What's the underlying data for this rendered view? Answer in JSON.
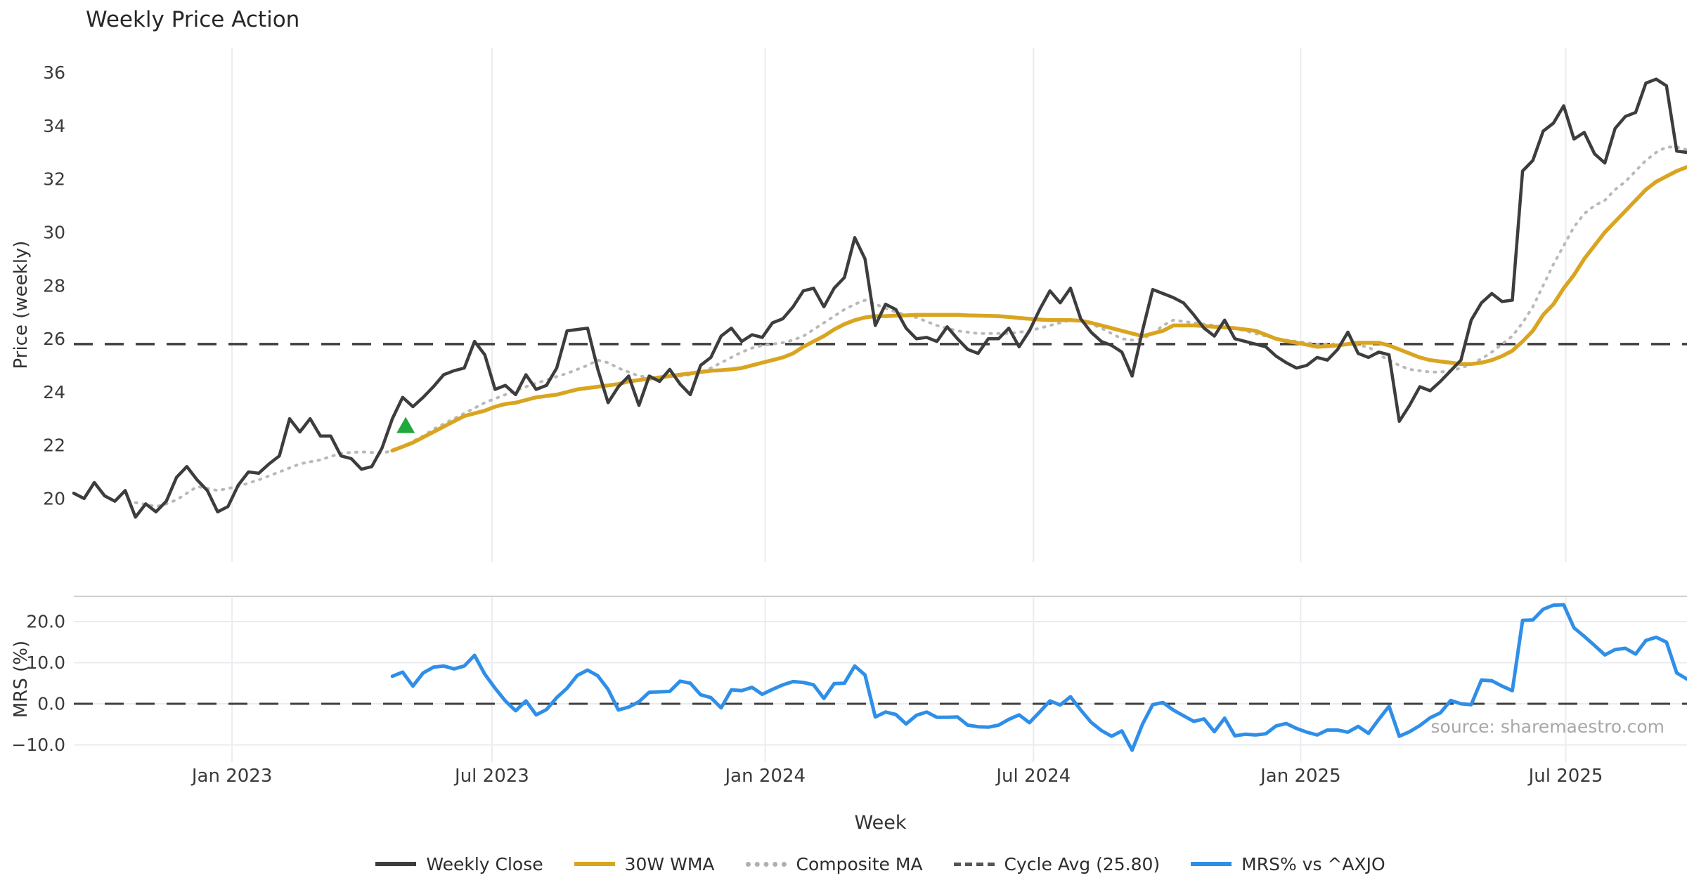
{
  "title": "Weekly Price Action",
  "source_note": "source: sharemaestro.com",
  "colors": {
    "weekly_close": "#3d3d3d",
    "wma_30w": "#d9a521",
    "composite_ma": "#b9b9b9",
    "cycle_avg_line": "#3f3f3f",
    "mrs_line": "#2f8fe8",
    "signal_marker": "#1fa83c",
    "grid": "#ebebf2",
    "panel_border": "#cfcfcf",
    "tick_text": "#3a3a3a",
    "axis_title_text": "#333333",
    "source_text": "#a8a8a8"
  },
  "legend": [
    {
      "label": "Weekly Close",
      "style": "solid",
      "color": "#3d3d3d"
    },
    {
      "label": "30W WMA",
      "style": "solid",
      "color": "#d9a521"
    },
    {
      "label": "Composite MA",
      "style": "dotted",
      "color": "#b0b0b0"
    },
    {
      "label": "Cycle Avg (25.80)",
      "style": "dashed",
      "color": "#555555"
    },
    {
      "label": "MRS% vs ^AXJO",
      "style": "solid",
      "color": "#2f8fe8"
    }
  ],
  "chart_data": [
    {
      "type": "line",
      "panel": "price",
      "title": "Weekly Price Action",
      "ylabel": "Price (weekly)",
      "xlabel": "Week",
      "x_start_date": "2022-09-19",
      "x_freq": "weekly",
      "ylim": [
        17.62,
        36.93
      ],
      "yticks": [
        20,
        22,
        24,
        26,
        28,
        30,
        32,
        34,
        36
      ],
      "xticks": {
        "labels": [
          "Jan 2023",
          "Jul 2023",
          "Jan 2024",
          "Jul 2024",
          "Jan 2025",
          "Jul 2025"
        ],
        "week_positions": [
          15.4,
          40.7,
          67.3,
          93.4,
          119.4,
          145.2
        ]
      },
      "grid": "vertical",
      "cycle_avg": 25.8,
      "signal_marker": {
        "shape": "triangle-up",
        "week": 32.3,
        "price": 22.75
      },
      "series": [
        {
          "name": "Weekly Close",
          "start_week": 0,
          "values": [
            20.2,
            20.0,
            20.6,
            20.1,
            19.9,
            20.3,
            19.3,
            19.8,
            19.5,
            19.9,
            20.8,
            21.2,
            20.7,
            20.3,
            19.5,
            19.7,
            20.5,
            21.0,
            20.95,
            21.3,
            21.6,
            23.0,
            22.5,
            23.0,
            22.35,
            22.35,
            21.6,
            21.5,
            21.1,
            21.2,
            21.9,
            23.0,
            23.8,
            23.45,
            23.8,
            24.2,
            24.65,
            24.8,
            24.9,
            25.9,
            25.4,
            24.1,
            24.25,
            23.9,
            24.65,
            24.1,
            24.25,
            24.9,
            26.3,
            26.35,
            26.4,
            24.85,
            23.6,
            24.2,
            24.6,
            23.5,
            24.6,
            24.4,
            24.85,
            24.3,
            23.9,
            25.0,
            25.3,
            26.1,
            26.4,
            25.9,
            26.15,
            26.05,
            26.6,
            26.75,
            27.2,
            27.8,
            27.9,
            27.2,
            27.9,
            28.3,
            29.8,
            29.0,
            26.5,
            27.3,
            27.1,
            26.4,
            26.0,
            26.05,
            25.9,
            26.45,
            26.0,
            25.6,
            25.45,
            26.0,
            26.0,
            26.4,
            25.7,
            26.3,
            27.1,
            27.8,
            27.35,
            27.9,
            26.75,
            26.25,
            25.9,
            25.75,
            25.5,
            24.6,
            26.3,
            27.85,
            27.7,
            27.55,
            27.35,
            26.9,
            26.4,
            26.1,
            26.7,
            26.0,
            25.9,
            25.8,
            25.7,
            25.35,
            25.1,
            24.9,
            25.0,
            25.3,
            25.2,
            25.6,
            26.25,
            25.45,
            25.3,
            25.5,
            25.4,
            22.9,
            23.5,
            24.2,
            24.05,
            24.4,
            24.8,
            25.2,
            26.7,
            27.35,
            27.7,
            27.4,
            27.45,
            32.3,
            32.7,
            33.8,
            34.1,
            34.75,
            33.5,
            33.75,
            32.95,
            32.6,
            33.9,
            34.35,
            34.5,
            35.6,
            35.75,
            35.5,
            33.05,
            33.0
          ]
        },
        {
          "name": "30W WMA",
          "start_week": 31,
          "values": [
            21.8,
            21.95,
            22.1,
            22.3,
            22.5,
            22.7,
            22.9,
            23.1,
            23.2,
            23.3,
            23.45,
            23.55,
            23.6,
            23.7,
            23.8,
            23.85,
            23.9,
            24.0,
            24.1,
            24.15,
            24.2,
            24.25,
            24.3,
            24.4,
            24.45,
            24.5,
            24.55,
            24.6,
            24.65,
            24.7,
            24.75,
            24.8,
            24.82,
            24.85,
            24.9,
            25.0,
            25.1,
            25.2,
            25.3,
            25.45,
            25.7,
            25.9,
            26.1,
            26.35,
            26.55,
            26.7,
            26.8,
            26.85,
            26.85,
            26.87,
            26.88,
            26.9,
            26.9,
            26.9,
            26.9,
            26.9,
            26.88,
            26.87,
            26.86,
            26.85,
            26.82,
            26.78,
            26.75,
            26.72,
            26.7,
            26.7,
            26.7,
            26.68,
            26.6,
            26.5,
            26.4,
            26.3,
            26.2,
            26.1,
            26.2,
            26.3,
            26.5,
            26.5,
            26.5,
            26.48,
            26.45,
            26.43,
            26.4,
            26.35,
            26.3,
            26.15,
            26.0,
            25.92,
            25.85,
            25.78,
            25.7,
            25.72,
            25.75,
            25.8,
            25.85,
            25.85,
            25.85,
            25.75,
            25.6,
            25.45,
            25.3,
            25.2,
            25.15,
            25.1,
            25.05,
            25.05,
            25.1,
            25.2,
            25.35,
            25.55,
            25.9,
            26.3,
            26.9,
            27.3,
            27.9,
            28.4,
            29.0,
            29.5,
            30.0,
            30.4,
            30.8,
            31.2,
            31.6,
            31.9,
            32.1,
            32.3,
            32.45
          ]
        },
        {
          "name": "Composite MA",
          "start_week": 6,
          "values": [
            19.85,
            19.78,
            19.7,
            19.8,
            19.95,
            20.2,
            20.45,
            20.38,
            20.3,
            20.38,
            20.45,
            20.58,
            20.7,
            20.85,
            21.0,
            21.15,
            21.3,
            21.38,
            21.45,
            21.58,
            21.7,
            21.73,
            21.75,
            21.73,
            21.7,
            21.8,
            21.95,
            22.15,
            22.35,
            22.6,
            22.8,
            23.0,
            23.2,
            23.4,
            23.6,
            23.75,
            23.9,
            24.05,
            24.2,
            24.33,
            24.45,
            24.58,
            24.7,
            24.85,
            25.0,
            25.2,
            25.1,
            24.9,
            24.75,
            24.6,
            24.55,
            24.55,
            24.6,
            24.6,
            24.65,
            24.75,
            24.9,
            25.1,
            25.3,
            25.5,
            25.65,
            25.75,
            25.8,
            25.85,
            25.95,
            26.1,
            26.35,
            26.6,
            26.85,
            27.1,
            27.3,
            27.45,
            27.3,
            27.15,
            27.0,
            26.9,
            26.8,
            26.65,
            26.5,
            26.4,
            26.3,
            26.25,
            26.2,
            26.2,
            26.2,
            26.2,
            26.25,
            26.3,
            26.4,
            26.5,
            26.6,
            26.7,
            26.7,
            26.55,
            26.4,
            26.2,
            26.0,
            25.95,
            26.0,
            26.2,
            26.5,
            26.7,
            26.65,
            26.6,
            26.55,
            26.5,
            26.45,
            26.4,
            26.3,
            26.2,
            26.1,
            26.0,
            25.95,
            25.9,
            25.85,
            25.8,
            25.8,
            25.8,
            25.8,
            25.75,
            25.7,
            25.4,
            25.2,
            25.0,
            24.85,
            24.8,
            24.75,
            24.75,
            24.8,
            24.9,
            25.05,
            25.25,
            25.5,
            25.8,
            26.1,
            26.6,
            27.2,
            28.0,
            28.8,
            29.5,
            30.2,
            30.7,
            31.0,
            31.2,
            31.6,
            31.9,
            32.3,
            32.7,
            33.0,
            33.2,
            33.2,
            33.1
          ]
        }
      ]
    },
    {
      "type": "line",
      "panel": "mrs",
      "ylabel": "MRS (%)",
      "ylim": [
        -14.19,
        26.15
      ],
      "yticks": [
        20.0,
        10.0,
        0.0,
        -10.0
      ],
      "ytick_labels": [
        "20.0",
        "10.0",
        "0.0",
        "−10.0"
      ],
      "grid": "both",
      "zero_line": 0.0,
      "series": [
        {
          "name": "MRS% vs ^AXJO",
          "start_week": 31,
          "values": [
            6.7,
            7.7,
            4.3,
            7.5,
            8.9,
            9.2,
            8.5,
            9.2,
            11.8,
            7.2,
            3.8,
            0.7,
            -1.7,
            0.7,
            -2.7,
            -1.4,
            1.5,
            3.8,
            6.9,
            8.2,
            6.8,
            3.5,
            -1.5,
            -0.8,
            0.5,
            2.8,
            2.9,
            3.0,
            5.5,
            5.0,
            2.2,
            1.5,
            -1.0,
            3.4,
            3.2,
            4.0,
            2.3,
            3.5,
            4.6,
            5.4,
            5.2,
            4.6,
            1.3,
            4.9,
            5.0,
            9.2,
            7.0,
            -3.2,
            -2.0,
            -2.6,
            -4.9,
            -2.8,
            -2.0,
            -3.3,
            -3.3,
            -3.2,
            -5.2,
            -5.6,
            -5.7,
            -5.2,
            -3.8,
            -2.7,
            -4.6,
            -2.0,
            0.7,
            -0.3,
            1.7,
            -1.5,
            -4.5,
            -6.5,
            -7.9,
            -6.6,
            -11.3,
            -5.0,
            -0.2,
            0.3,
            -1.5,
            -2.9,
            -4.3,
            -3.7,
            -6.8,
            -3.5,
            -7.8,
            -7.4,
            -7.6,
            -7.3,
            -5.4,
            -4.8,
            -6.0,
            -6.9,
            -7.6,
            -6.4,
            -6.4,
            -6.9,
            -5.5,
            -7.2,
            -3.8,
            -0.6,
            -7.9,
            -6.8,
            -5.3,
            -3.4,
            -2.2,
            0.8,
            0.0,
            -0.2,
            5.8,
            5.6,
            4.3,
            3.2,
            20.3,
            20.4,
            23.0,
            24.0,
            24.1,
            18.5,
            16.4,
            14.2,
            11.9,
            13.2,
            13.5,
            12.1,
            15.4,
            16.2,
            15.0,
            7.5,
            6.0
          ]
        }
      ]
    }
  ]
}
